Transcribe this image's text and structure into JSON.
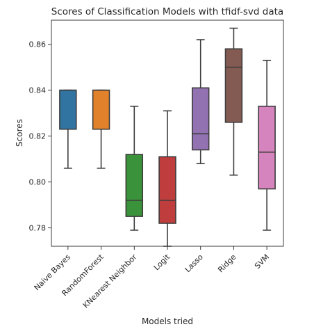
{
  "chart_data": {
    "type": "box",
    "title": "Scores of Classification Models with tfidf-svd data",
    "xlabel": "Models tried",
    "ylabel": "Scores",
    "ylim": [
      0.772,
      0.8705
    ],
    "yticks": [
      0.78,
      0.8,
      0.82,
      0.84,
      0.86
    ],
    "ytick_labels": [
      "0.78",
      "0.80",
      "0.82",
      "0.84",
      "0.86"
    ],
    "grid": false,
    "categories": [
      "Naive Bayes",
      "RandomForest",
      "KNearest Neighbor",
      "Logit",
      "Lasso",
      "Ridge",
      "SVM"
    ],
    "colors": [
      "#3274a1",
      "#e1812c",
      "#3a923a",
      "#c03d3e",
      "#9372b2",
      "#845b53",
      "#d684bd"
    ],
    "median_color": "#3d3d3d",
    "boxes": [
      {
        "name": "Naive Bayes",
        "whisker_low": 0.806,
        "q1": 0.823,
        "median": 0.84,
        "q3": 0.84,
        "whisker_high": 0.84
      },
      {
        "name": "RandomForest",
        "whisker_low": 0.806,
        "q1": 0.823,
        "median": 0.84,
        "q3": 0.84,
        "whisker_high": 0.84
      },
      {
        "name": "KNearest Neighbor",
        "whisker_low": 0.779,
        "q1": 0.785,
        "median": 0.792,
        "q3": 0.812,
        "whisker_high": 0.833
      },
      {
        "name": "Logit",
        "whisker_low": 0.772,
        "q1": 0.782,
        "median": 0.792,
        "q3": 0.811,
        "whisker_high": 0.831
      },
      {
        "name": "Lasso",
        "whisker_low": 0.808,
        "q1": 0.814,
        "median": 0.821,
        "q3": 0.841,
        "whisker_high": 0.862
      },
      {
        "name": "Ridge",
        "whisker_low": 0.803,
        "q1": 0.826,
        "median": 0.85,
        "q3": 0.858,
        "whisker_high": 0.867
      },
      {
        "name": "SVM",
        "whisker_low": 0.779,
        "q1": 0.797,
        "median": 0.813,
        "q3": 0.833,
        "whisker_high": 0.853
      }
    ]
  }
}
